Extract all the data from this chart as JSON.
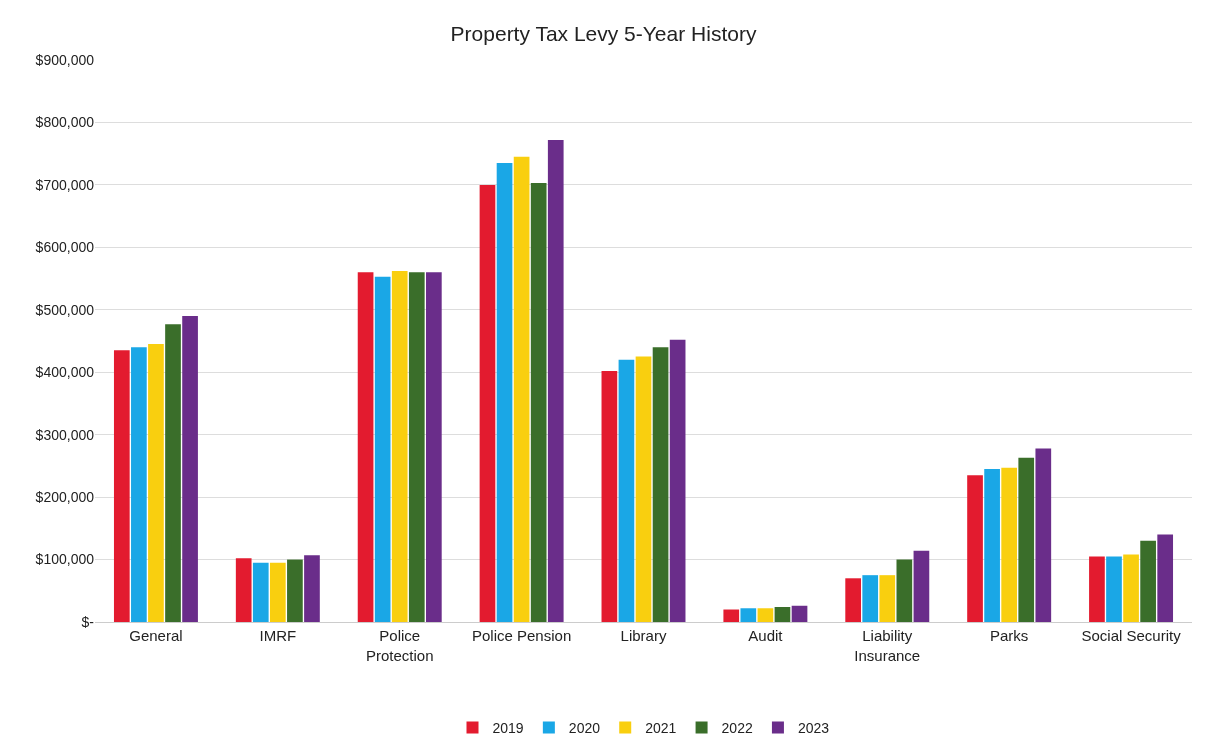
{
  "chart_data": {
    "type": "bar",
    "title": "Property Tax Levy 5-Year History",
    "categories": [
      "General",
      "IMRF",
      "Police\nProtection",
      "Police Pension",
      "Library",
      "Audit",
      "Liability\nInsurance",
      "Parks",
      "Social Security"
    ],
    "series": [
      {
        "name": "2019",
        "color": "#e31b2f",
        "values": [
          435000,
          102000,
          560000,
          700000,
          402000,
          20000,
          70000,
          235000,
          105000
        ]
      },
      {
        "name": "2020",
        "color": "#1aa7e6",
        "values": [
          440000,
          95000,
          553000,
          735000,
          420000,
          22000,
          75000,
          245000,
          105000
        ]
      },
      {
        "name": "2021",
        "color": "#f9cf0f",
        "values": [
          445000,
          95000,
          562000,
          745000,
          425000,
          22000,
          75000,
          247000,
          108000
        ]
      },
      {
        "name": "2022",
        "color": "#3a6e2a",
        "values": [
          477000,
          100000,
          560000,
          703000,
          440000,
          24000,
          100000,
          263000,
          130000
        ]
      },
      {
        "name": "2023",
        "color": "#6a2d8a",
        "values": [
          490000,
          107000,
          560000,
          772000,
          452000,
          26000,
          114000,
          278000,
          140000
        ]
      }
    ],
    "ylim": [
      0,
      900000
    ],
    "yticks": [
      {
        "value": 0,
        "label": "$-"
      },
      {
        "value": 100000,
        "label": "$100,000"
      },
      {
        "value": 200000,
        "label": "$200,000"
      },
      {
        "value": 300000,
        "label": "$300,000"
      },
      {
        "value": 400000,
        "label": "$400,000"
      },
      {
        "value": 500000,
        "label": "$500,000"
      },
      {
        "value": 600000,
        "label": "$600,000"
      },
      {
        "value": 700000,
        "label": "$700,000"
      },
      {
        "value": 800000,
        "label": "$800,000"
      },
      {
        "value": 900000,
        "label": "$900,000"
      }
    ],
    "grid": "y",
    "legend": "bottom"
  }
}
